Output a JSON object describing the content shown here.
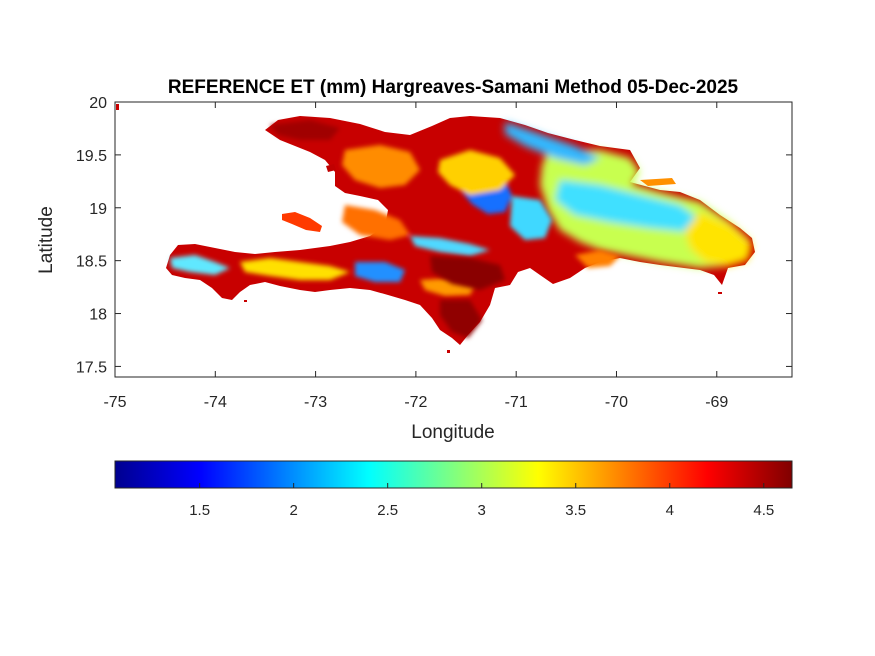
{
  "title": "REFERENCE ET (mm) Hargreaves-Samani Method  05-Dec-2025",
  "map": {
    "xlabel": "Longitude",
    "ylabel": "Latitude",
    "xlim": [
      -75,
      -68.25
    ],
    "ylim": [
      17.4,
      20
    ],
    "xticks": [
      -75,
      -74,
      -73,
      -72,
      -71,
      -70,
      -69
    ],
    "yticks": [
      17.5,
      18,
      18.5,
      19,
      19.5,
      20
    ],
    "xtick_labels": [
      "-75",
      "-74",
      "-73",
      "-72",
      "-71",
      "-70",
      "-69"
    ],
    "ytick_labels": [
      "17.5",
      "18",
      "18.5",
      "19",
      "19.5",
      "20"
    ],
    "region": "Hispaniola"
  },
  "colorbar": {
    "colormap": "jet",
    "range": [
      1.05,
      4.65
    ],
    "ticks": [
      1.5,
      2,
      2.5,
      3,
      3.5,
      4,
      4.5
    ],
    "tick_labels": [
      "1.5",
      "2",
      "2.5",
      "3",
      "3.5",
      "4",
      "4.5"
    ],
    "colors": [
      "#00008f",
      "#0000ff",
      "#0080ff",
      "#00ffff",
      "#80ff80",
      "#ffff00",
      "#ff8000",
      "#ff0000",
      "#800000"
    ]
  },
  "colors": {
    "high": "#c00000",
    "mid_high": "#ff2a00",
    "orange": "#ff8c00",
    "yellow": "#ffe600",
    "green": "#a0ff60",
    "cyan": "#30d0ff",
    "blue": "#1060ff"
  }
}
